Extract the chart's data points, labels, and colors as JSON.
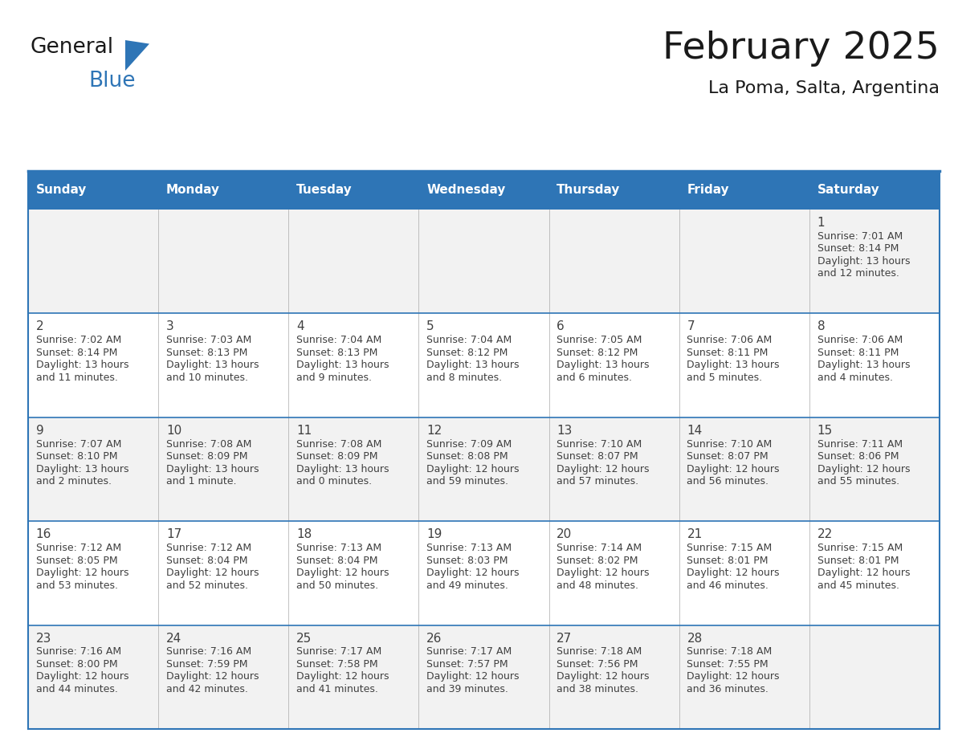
{
  "title": "February 2025",
  "subtitle": "La Poma, Salta, Argentina",
  "days_of_week": [
    "Sunday",
    "Monday",
    "Tuesday",
    "Wednesday",
    "Thursday",
    "Friday",
    "Saturday"
  ],
  "header_bg": "#2E75B6",
  "header_text": "#FFFFFF",
  "cell_bg_white": "#FFFFFF",
  "cell_bg_gray": "#F2F2F2",
  "border_color": "#2E75B6",
  "text_color": "#404040",
  "title_color": "#1A1A1A",
  "logo_general_color": "#1A1A1A",
  "logo_blue_color": "#2E75B6",
  "logo_triangle_color": "#2E75B6",
  "calendar_data": [
    [
      null,
      null,
      null,
      null,
      null,
      null,
      {
        "day": 1,
        "sunrise": "7:01 AM",
        "sunset": "8:14 PM",
        "daylight": "13 hours and 12 minutes."
      }
    ],
    [
      {
        "day": 2,
        "sunrise": "7:02 AM",
        "sunset": "8:14 PM",
        "daylight": "13 hours and 11 minutes."
      },
      {
        "day": 3,
        "sunrise": "7:03 AM",
        "sunset": "8:13 PM",
        "daylight": "13 hours and 10 minutes."
      },
      {
        "day": 4,
        "sunrise": "7:04 AM",
        "sunset": "8:13 PM",
        "daylight": "13 hours and 9 minutes."
      },
      {
        "day": 5,
        "sunrise": "7:04 AM",
        "sunset": "8:12 PM",
        "daylight": "13 hours and 8 minutes."
      },
      {
        "day": 6,
        "sunrise": "7:05 AM",
        "sunset": "8:12 PM",
        "daylight": "13 hours and 6 minutes."
      },
      {
        "day": 7,
        "sunrise": "7:06 AM",
        "sunset": "8:11 PM",
        "daylight": "13 hours and 5 minutes."
      },
      {
        "day": 8,
        "sunrise": "7:06 AM",
        "sunset": "8:11 PM",
        "daylight": "13 hours and 4 minutes."
      }
    ],
    [
      {
        "day": 9,
        "sunrise": "7:07 AM",
        "sunset": "8:10 PM",
        "daylight": "13 hours and 2 minutes."
      },
      {
        "day": 10,
        "sunrise": "7:08 AM",
        "sunset": "8:09 PM",
        "daylight": "13 hours and 1 minute."
      },
      {
        "day": 11,
        "sunrise": "7:08 AM",
        "sunset": "8:09 PM",
        "daylight": "13 hours and 0 minutes."
      },
      {
        "day": 12,
        "sunrise": "7:09 AM",
        "sunset": "8:08 PM",
        "daylight": "12 hours and 59 minutes."
      },
      {
        "day": 13,
        "sunrise": "7:10 AM",
        "sunset": "8:07 PM",
        "daylight": "12 hours and 57 minutes."
      },
      {
        "day": 14,
        "sunrise": "7:10 AM",
        "sunset": "8:07 PM",
        "daylight": "12 hours and 56 minutes."
      },
      {
        "day": 15,
        "sunrise": "7:11 AM",
        "sunset": "8:06 PM",
        "daylight": "12 hours and 55 minutes."
      }
    ],
    [
      {
        "day": 16,
        "sunrise": "7:12 AM",
        "sunset": "8:05 PM",
        "daylight": "12 hours and 53 minutes."
      },
      {
        "day": 17,
        "sunrise": "7:12 AM",
        "sunset": "8:04 PM",
        "daylight": "12 hours and 52 minutes."
      },
      {
        "day": 18,
        "sunrise": "7:13 AM",
        "sunset": "8:04 PM",
        "daylight": "12 hours and 50 minutes."
      },
      {
        "day": 19,
        "sunrise": "7:13 AM",
        "sunset": "8:03 PM",
        "daylight": "12 hours and 49 minutes."
      },
      {
        "day": 20,
        "sunrise": "7:14 AM",
        "sunset": "8:02 PM",
        "daylight": "12 hours and 48 minutes."
      },
      {
        "day": 21,
        "sunrise": "7:15 AM",
        "sunset": "8:01 PM",
        "daylight": "12 hours and 46 minutes."
      },
      {
        "day": 22,
        "sunrise": "7:15 AM",
        "sunset": "8:01 PM",
        "daylight": "12 hours and 45 minutes."
      }
    ],
    [
      {
        "day": 23,
        "sunrise": "7:16 AM",
        "sunset": "8:00 PM",
        "daylight": "12 hours and 44 minutes."
      },
      {
        "day": 24,
        "sunrise": "7:16 AM",
        "sunset": "7:59 PM",
        "daylight": "12 hours and 42 minutes."
      },
      {
        "day": 25,
        "sunrise": "7:17 AM",
        "sunset": "7:58 PM",
        "daylight": "12 hours and 41 minutes."
      },
      {
        "day": 26,
        "sunrise": "7:17 AM",
        "sunset": "7:57 PM",
        "daylight": "12 hours and 39 minutes."
      },
      {
        "day": 27,
        "sunrise": "7:18 AM",
        "sunset": "7:56 PM",
        "daylight": "12 hours and 38 minutes."
      },
      {
        "day": 28,
        "sunrise": "7:18 AM",
        "sunset": "7:55 PM",
        "daylight": "12 hours and 36 minutes."
      },
      null
    ]
  ]
}
